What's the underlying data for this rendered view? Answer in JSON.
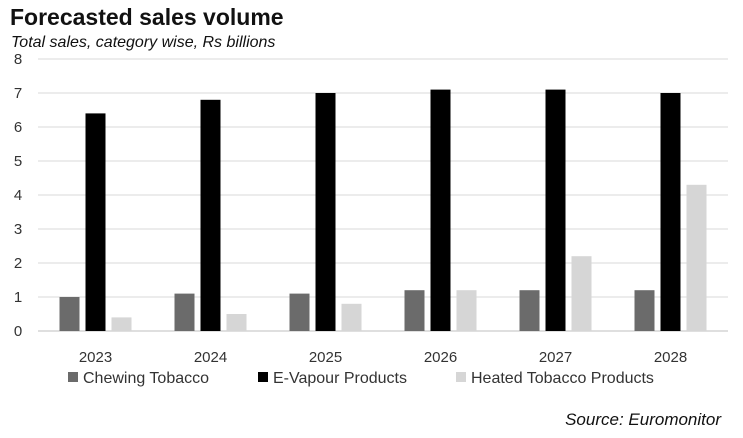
{
  "header": {
    "title": "Forecasted sales volume",
    "subtitle": "Total sales, category wise, Rs billions"
  },
  "footer": {
    "source": "Source: Euromonitor"
  },
  "colors": {
    "chewing": "#6b6b6b",
    "vapour": "#000000",
    "heated": "#d6d6d6",
    "gridline": "#d9d9d9",
    "axis": "#bfbfbf"
  },
  "chart_data": {
    "type": "bar",
    "title": "Forecasted sales volume",
    "subtitle": "Total sales, category wise, Rs billions",
    "xlabel": "",
    "ylabel": "",
    "ylim": [
      0,
      8
    ],
    "yticks": [
      0,
      1,
      2,
      3,
      4,
      5,
      6,
      7,
      8
    ],
    "grid": true,
    "legend_position": "bottom",
    "categories": [
      "2023",
      "2024",
      "2025",
      "2026",
      "2027",
      "2028"
    ],
    "series": [
      {
        "name": "Chewing Tobacco",
        "values": [
          1.0,
          1.1,
          1.1,
          1.2,
          1.2,
          1.2
        ]
      },
      {
        "name": "E-Vapour Products",
        "values": [
          6.4,
          6.8,
          7.0,
          7.1,
          7.1,
          7.0
        ]
      },
      {
        "name": "Heated Tobacco Products",
        "values": [
          0.4,
          0.5,
          0.8,
          1.2,
          2.2,
          4.3
        ]
      }
    ]
  }
}
